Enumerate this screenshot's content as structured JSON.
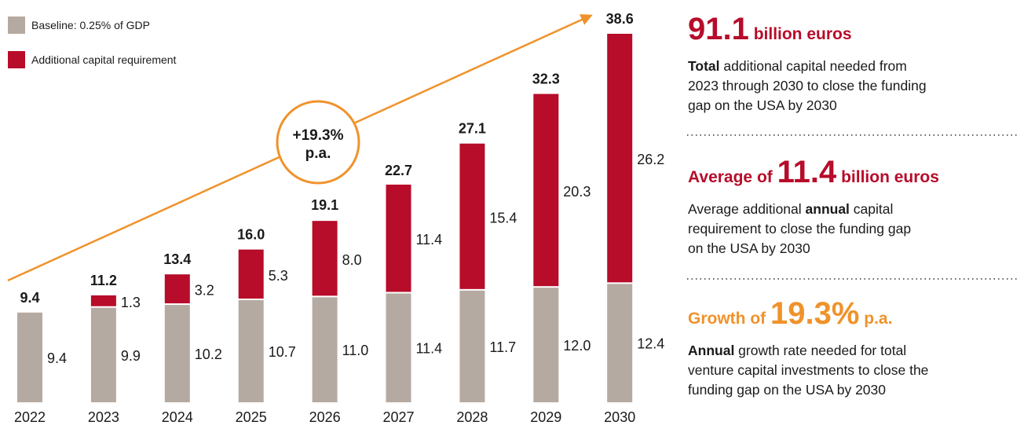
{
  "chart_data": {
    "type": "stacked_bar",
    "categories": [
      "2022",
      "2023",
      "2024",
      "2025",
      "2026",
      "2027",
      "2028",
      "2029",
      "2030"
    ],
    "series": [
      {
        "name": "Baseline: 0.25% of GDP",
        "color": "#b5aaa1",
        "values": [
          9.4,
          9.9,
          10.2,
          10.7,
          11.0,
          11.4,
          11.7,
          12.0,
          12.4
        ],
        "value_labels": [
          "9.4",
          "9.9",
          "10.2",
          "10.7",
          "11.0",
          "11.4",
          "11.7",
          "12.0",
          "12.4"
        ]
      },
      {
        "name": "Additional capital requirement",
        "color": "#b70c2a",
        "values": [
          null,
          1.3,
          3.2,
          5.3,
          8.0,
          11.4,
          15.4,
          20.3,
          26.2
        ],
        "value_labels": [
          null,
          "1.3",
          "3.2",
          "5.3",
          "8.0",
          "11.4",
          "15.4",
          "20.3",
          "26.2"
        ]
      }
    ],
    "totals": {
      "values": [
        9.4,
        11.2,
        13.4,
        16.0,
        19.1,
        22.7,
        27.1,
        32.3,
        38.6
      ],
      "value_labels": [
        "9.4",
        "11.2",
        "13.4",
        "16.0",
        "19.1",
        "22.7",
        "27.1",
        "32.3",
        "38.6"
      ]
    },
    "ylim": [
      0,
      40
    ],
    "annotation": {
      "lines": [
        "+19.3%",
        "p.a."
      ],
      "color": "#f0922b"
    }
  },
  "panel": [
    {
      "color": "#b70c2a",
      "headline": [
        {
          "text": "91.1",
          "size": "big"
        },
        {
          "text": " billion euros"
        }
      ],
      "lines": [
        [
          {
            "text": "Total",
            "bold": true
          },
          {
            "text": " additional capital needed from"
          }
        ],
        [
          {
            "text": "2023 through 2030 to close the funding"
          }
        ],
        [
          {
            "text": "gap on the USA by 2030"
          }
        ]
      ]
    },
    {
      "color": "#b70c2a",
      "headline": [
        {
          "text": "Average of "
        },
        {
          "text": "11.4",
          "size": "big"
        },
        {
          "text": " billion euros"
        }
      ],
      "lines": [
        [
          {
            "text": "Average additional "
          },
          {
            "text": "annual",
            "bold": true
          },
          {
            "text": " capital"
          }
        ],
        [
          {
            "text": "requirement to close the funding gap"
          }
        ],
        [
          {
            "text": "on the USA by 2030"
          }
        ]
      ]
    },
    {
      "color": "#f0922b",
      "headline": [
        {
          "text": "Growth of "
        },
        {
          "text": "19.3%",
          "size": "big"
        },
        {
          "text": " p.a."
        }
      ],
      "lines": [
        [
          {
            "text": "Annual",
            "bold": true
          },
          {
            "text": " growth rate needed for total"
          }
        ],
        [
          {
            "text": "venture capital investments to close the"
          }
        ],
        [
          {
            "text": "funding gap on the USA by 2030"
          }
        ]
      ]
    }
  ]
}
